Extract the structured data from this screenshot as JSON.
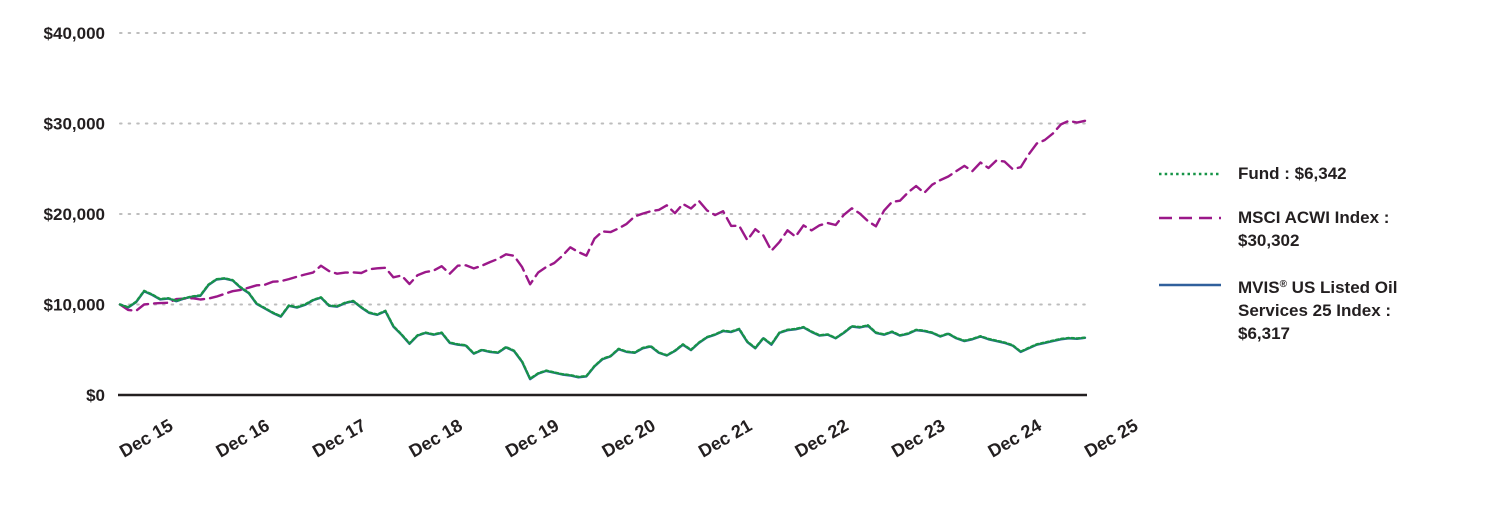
{
  "legend": {
    "fund": {
      "text": "Fund : $6,342"
    },
    "msci": {
      "text": "MSCI ACWI Index : $30,302"
    },
    "mvis": {
      "pre": "MVIS",
      "sup": "®",
      "post": " US Listed Oil Services 25 Index :  $6,317"
    }
  },
  "chart_data": {
    "type": "line",
    "grid": "dotted-horizontal",
    "legend_position": "right",
    "ylim": [
      0,
      40000
    ],
    "y_ticks": [
      {
        "label": "$0",
        "value": 0
      },
      {
        "label": "$10,000",
        "value": 10000
      },
      {
        "label": "$20,000",
        "value": 20000
      },
      {
        "label": "$30,000",
        "value": 30000
      },
      {
        "label": "$40,000",
        "value": 40000
      }
    ],
    "x_categories": [
      "Dec 15",
      "Dec 16",
      "Dec 17",
      "Dec 18",
      "Dec 19",
      "Dec 20",
      "Dec 21",
      "Dec 22",
      "Dec 23",
      "Dec 24",
      "Dec 25"
    ],
    "points_per_year": 12,
    "series": [
      {
        "name": "Fund",
        "final_value": "$6,342",
        "color": "#169447",
        "style": "dotted",
        "values": [
          10000,
          9700,
          10300,
          11500,
          11100,
          10600,
          10700,
          10400,
          10700,
          10900,
          11000,
          12200,
          12800,
          12900,
          12700,
          11900,
          11300,
          10100,
          9600,
          9100,
          8700,
          9900,
          9700,
          10000,
          10500,
          10800,
          9900,
          9800,
          10200,
          10400,
          9700,
          9100,
          8900,
          9300,
          7600,
          6700,
          5700,
          6600,
          6900,
          6700,
          6900,
          5800,
          5600,
          5500,
          4600,
          5000,
          4800,
          4700,
          5300,
          4900,
          3700,
          1800,
          2400,
          2700,
          2500,
          2300,
          2200,
          2000,
          2100,
          3200,
          4000,
          4300,
          5100,
          4800,
          4700,
          5200,
          5400,
          4700,
          4400,
          4900,
          5600,
          5000,
          5800,
          6400,
          6700,
          7100,
          7000,
          7300,
          5900,
          5200,
          6300,
          5600,
          6900,
          7200,
          7300,
          7500,
          7000,
          6600,
          6700,
          6300,
          6900,
          7600,
          7500,
          7700,
          6900,
          6700,
          7000,
          6600,
          6800,
          7200,
          7100,
          6900,
          6500,
          6800,
          6300,
          6000,
          6200,
          6500,
          6200,
          6000,
          5800,
          5500,
          4800,
          5200,
          5600,
          5800,
          6000,
          6200,
          6300,
          6250,
          6342
        ]
      },
      {
        "name": "MSCI ACWI Index",
        "final_value": "$30,302",
        "color": "#9B1889",
        "style": "dashed",
        "values": [
          10000,
          9400,
          9300,
          10000,
          10100,
          10150,
          10200,
          10600,
          10650,
          10700,
          10550,
          10650,
          10870,
          11170,
          11470,
          11610,
          11860,
          12120,
          12180,
          12520,
          12570,
          12810,
          13070,
          13310,
          13530,
          14290,
          13690,
          13400,
          13530,
          13550,
          13480,
          13890,
          14000,
          14060,
          13010,
          13200,
          12270,
          13240,
          13590,
          13750,
          14230,
          13400,
          14290,
          14330,
          13990,
          14290,
          14680,
          15040,
          15550,
          15380,
          14130,
          12230,
          13540,
          14140,
          14590,
          15370,
          16320,
          15790,
          15400,
          17280,
          18080,
          18000,
          18410,
          18910,
          19740,
          20040,
          20310,
          20450,
          20960,
          20090,
          21110,
          20610,
          21440,
          20400,
          19880,
          20310,
          18680,
          18700,
          17120,
          18320,
          17640,
          15940,
          16900,
          18200,
          17490,
          18740,
          18190,
          18750,
          19010,
          18790,
          19900,
          20630,
          20050,
          19220,
          18640,
          20370,
          21340,
          21470,
          22390,
          23090,
          22330,
          23240,
          23750,
          24140,
          24740,
          25320,
          24740,
          25690,
          25080,
          25920,
          25790,
          24960,
          25170,
          26590,
          27790,
          28180,
          28880,
          29900,
          30300,
          30100,
          30302
        ]
      },
      {
        "name": "MVIS US Listed Oil Services 25 Index",
        "final_value": "$6,317",
        "color": "#30609C",
        "style": "solid",
        "values": [
          10000,
          9660,
          10260,
          11460,
          11060,
          10560,
          10660,
          10360,
          10660,
          10860,
          10960,
          12160,
          12760,
          12860,
          12660,
          11860,
          11260,
          10060,
          9560,
          9060,
          8660,
          9860,
          9660,
          9960,
          10460,
          10760,
          9860,
          9760,
          10160,
          10360,
          9660,
          9060,
          8860,
          9260,
          7560,
          6660,
          5660,
          6560,
          6860,
          6660,
          6860,
          5760,
          5560,
          5460,
          4560,
          4960,
          4760,
          4660,
          5260,
          4860,
          3660,
          1760,
          2360,
          2660,
          2460,
          2260,
          2160,
          1960,
          2060,
          3160,
          3960,
          4260,
          5060,
          4760,
          4660,
          5160,
          5360,
          4660,
          4360,
          4860,
          5560,
          4960,
          5760,
          6360,
          6660,
          7060,
          6960,
          7260,
          5860,
          5160,
          6260,
          5560,
          6860,
          7160,
          7260,
          7460,
          6960,
          6560,
          6660,
          6260,
          6860,
          7560,
          7460,
          7660,
          6860,
          6660,
          6960,
          6560,
          6760,
          7160,
          7060,
          6860,
          6460,
          6760,
          6260,
          5960,
          6160,
          6460,
          6160,
          5960,
          5760,
          5460,
          4760,
          5160,
          5560,
          5760,
          5960,
          6160,
          6260,
          6210,
          6317
        ]
      }
    ]
  }
}
